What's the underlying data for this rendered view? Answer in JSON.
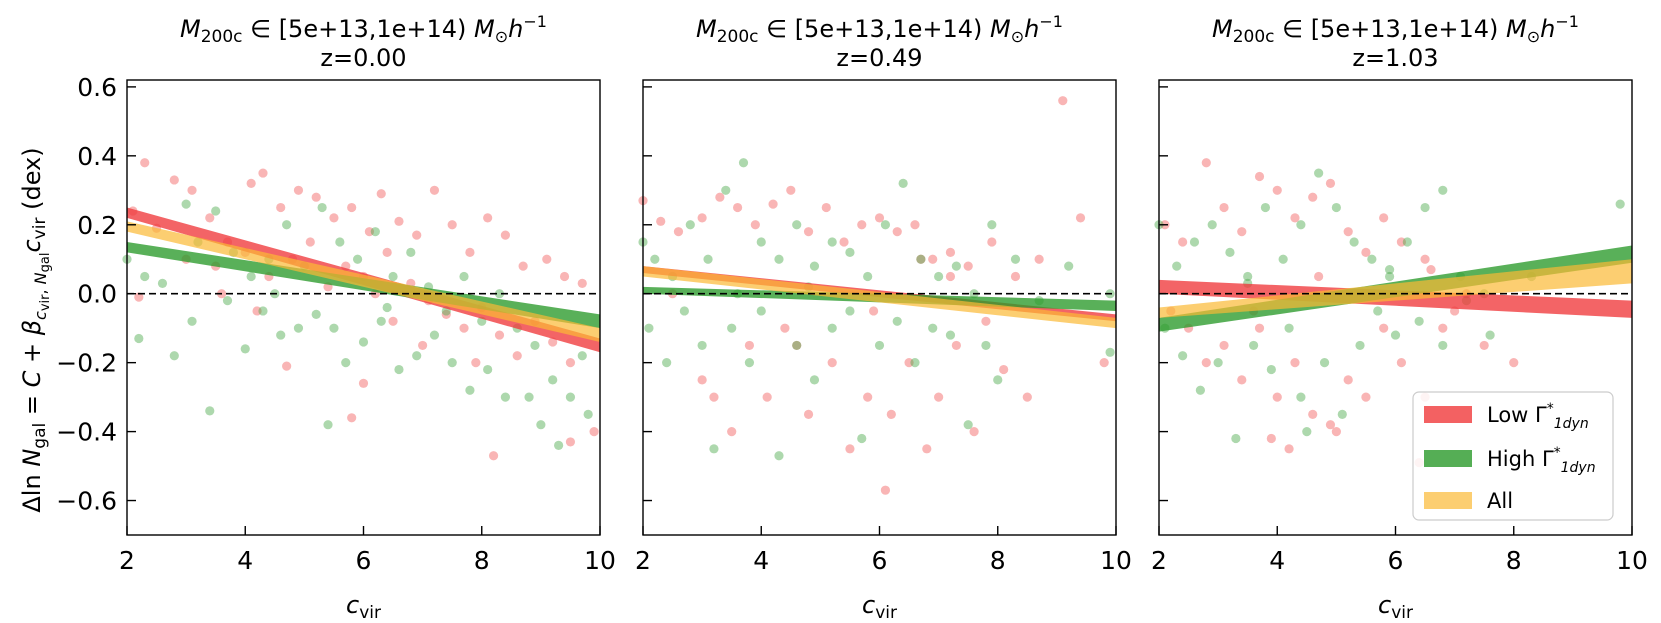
{
  "colors": {
    "low": "#f0393b",
    "high": "#2a9a2a",
    "all": "#fbb934",
    "low_point": "#f25a5c",
    "high_point": "#4aa84a",
    "axis": "#000000"
  },
  "shared": {
    "x_ticks": [
      2,
      4,
      6,
      8,
      10
    ],
    "y_ticks": [
      -0.6,
      -0.4,
      -0.2,
      0.0,
      0.2,
      0.4,
      0.6
    ],
    "y_tick_labels": [
      "−0.6",
      "−0.4",
      "−0.2",
      "0.0",
      "0.2",
      "0.4",
      "0.6"
    ]
  },
  "chart_data": [
    {
      "type": "scatter",
      "title_line1": "M200c ∈ [5e+13,1e+14) M⊙h⁻¹",
      "title_line2": "z=0.00",
      "xlabel": "c_vir",
      "ylabel": "Δln N_gal = C + β c_vir, N_gal c_vir (dex)",
      "xlim": [
        2,
        10
      ],
      "ylim": [
        -0.7,
        0.62
      ],
      "bands": [
        {
          "name": "Low Γ*1dyn",
          "color": "low",
          "at_x2": [
            0.22,
            0.25
          ],
          "at_x10": [
            -0.17,
            -0.13
          ]
        },
        {
          "name": "High Γ*1dyn",
          "color": "high",
          "at_x2": [
            0.12,
            0.15
          ],
          "at_x10": [
            -0.1,
            -0.06
          ]
        },
        {
          "name": "All",
          "color": "all",
          "at_x2": [
            0.18,
            0.21
          ],
          "at_x10": [
            -0.14,
            -0.1
          ]
        }
      ],
      "points_low": [
        [
          2.3,
          0.38
        ],
        [
          2.8,
          0.33
        ],
        [
          3.1,
          0.3
        ],
        [
          2.1,
          0.24
        ],
        [
          2.5,
          0.19
        ],
        [
          3.4,
          0.22
        ],
        [
          3.7,
          0.15
        ],
        [
          4.1,
          0.32
        ],
        [
          4.3,
          0.35
        ],
        [
          4.6,
          0.25
        ],
        [
          4.9,
          0.3
        ],
        [
          5.2,
          0.28
        ],
        [
          5.5,
          0.22
        ],
        [
          5.8,
          0.25
        ],
        [
          6.1,
          0.18
        ],
        [
          6.3,
          0.29
        ],
        [
          6.6,
          0.21
        ],
        [
          6.9,
          0.17
        ],
        [
          7.2,
          0.3
        ],
        [
          7.5,
          0.2
        ],
        [
          7.8,
          0.12
        ],
        [
          8.1,
          0.22
        ],
        [
          8.4,
          0.17
        ],
        [
          8.7,
          0.08
        ],
        [
          9.1,
          0.1
        ],
        [
          9.4,
          0.05
        ],
        [
          9.7,
          0.03
        ],
        [
          2.2,
          -0.01
        ],
        [
          3.0,
          0.1
        ],
        [
          3.5,
          0.08
        ],
        [
          4.0,
          0.12
        ],
        [
          4.4,
          0.05
        ],
        [
          4.8,
          0.1
        ],
        [
          5.1,
          0.15
        ],
        [
          5.4,
          0.02
        ],
        [
          5.7,
          0.08
        ],
        [
          6.0,
          0.05
        ],
        [
          6.4,
          0.12
        ],
        [
          6.8,
          0.03
        ],
        [
          7.1,
          -0.02
        ],
        [
          7.4,
          -0.06
        ],
        [
          7.7,
          -0.1
        ],
        [
          8.0,
          -0.04
        ],
        [
          8.3,
          -0.12
        ],
        [
          8.6,
          -0.18
        ],
        [
          8.9,
          -0.08
        ],
        [
          9.2,
          -0.14
        ],
        [
          9.5,
          -0.2
        ],
        [
          9.9,
          -0.4
        ],
        [
          9.5,
          -0.43
        ],
        [
          8.2,
          -0.47
        ],
        [
          5.8,
          -0.36
        ],
        [
          6.0,
          -0.26
        ],
        [
          4.7,
          -0.21
        ],
        [
          6.5,
          -0.08
        ],
        [
          7.0,
          -0.15
        ],
        [
          7.9,
          -0.2
        ],
        [
          4.2,
          -0.05
        ],
        [
          3.6,
          0.0
        ],
        [
          6.2,
          0.0
        ]
      ],
      "points_high": [
        [
          2.0,
          0.1
        ],
        [
          2.3,
          0.05
        ],
        [
          2.6,
          0.03
        ],
        [
          3.0,
          0.26
        ],
        [
          3.2,
          0.15
        ],
        [
          3.5,
          0.24
        ],
        [
          3.8,
          0.12
        ],
        [
          4.1,
          0.05
        ],
        [
          4.4,
          0.1
        ],
        [
          4.7,
          0.2
        ],
        [
          5.0,
          0.08
        ],
        [
          5.3,
          0.25
        ],
        [
          5.6,
          0.15
        ],
        [
          5.9,
          0.1
        ],
        [
          6.2,
          0.18
        ],
        [
          6.5,
          0.05
        ],
        [
          6.8,
          0.12
        ],
        [
          7.1,
          0.02
        ],
        [
          7.4,
          -0.05
        ],
        [
          7.7,
          0.05
        ],
        [
          8.0,
          -0.08
        ],
        [
          8.3,
          0.0
        ],
        [
          8.6,
          -0.1
        ],
        [
          8.9,
          -0.15
        ],
        [
          9.2,
          -0.25
        ],
        [
          9.5,
          -0.3
        ],
        [
          9.8,
          -0.35
        ],
        [
          2.2,
          -0.13
        ],
        [
          2.8,
          -0.18
        ],
        [
          3.1,
          -0.08
        ],
        [
          3.4,
          -0.34
        ],
        [
          3.7,
          -0.02
        ],
        [
          4.0,
          -0.16
        ],
        [
          4.3,
          -0.05
        ],
        [
          4.6,
          -0.12
        ],
        [
          4.9,
          -0.1
        ],
        [
          5.2,
          -0.06
        ],
        [
          5.4,
          -0.38
        ],
        [
          5.7,
          -0.2
        ],
        [
          6.0,
          -0.14
        ],
        [
          6.3,
          -0.08
        ],
        [
          6.6,
          -0.22
        ],
        [
          6.9,
          -0.18
        ],
        [
          7.2,
          -0.12
        ],
        [
          7.5,
          -0.2
        ],
        [
          7.8,
          -0.28
        ],
        [
          8.1,
          -0.22
        ],
        [
          8.4,
          -0.3
        ],
        [
          8.8,
          -0.3
        ],
        [
          9.0,
          -0.38
        ],
        [
          9.3,
          -0.44
        ],
        [
          9.7,
          -0.18
        ],
        [
          5.5,
          -0.1
        ],
        [
          6.4,
          -0.04
        ],
        [
          4.5,
          0.0
        ]
      ]
    },
    {
      "type": "scatter",
      "title_line1": "M200c ∈ [5e+13,1e+14) M⊙h⁻¹",
      "title_line2": "z=0.49",
      "xlabel": "c_vir",
      "xlim": [
        2,
        10
      ],
      "ylim": [
        -0.7,
        0.62
      ],
      "bands": [
        {
          "name": "Low Γ*1dyn",
          "color": "low",
          "at_x2": [
            0.06,
            0.08
          ],
          "at_x10": [
            -0.08,
            -0.06
          ]
        },
        {
          "name": "High Γ*1dyn",
          "color": "high",
          "at_x2": [
            0.0,
            0.02
          ],
          "at_x10": [
            -0.05,
            -0.02
          ]
        },
        {
          "name": "All",
          "color": "all",
          "at_x2": [
            0.05,
            0.08
          ],
          "at_x10": [
            -0.1,
            -0.07
          ]
        }
      ],
      "points_low": [
        [
          2.0,
          0.27
        ],
        [
          2.3,
          0.21
        ],
        [
          2.6,
          0.18
        ],
        [
          3.0,
          0.22
        ],
        [
          3.3,
          0.28
        ],
        [
          3.6,
          0.25
        ],
        [
          3.9,
          0.2
        ],
        [
          4.2,
          0.26
        ],
        [
          4.5,
          0.3
        ],
        [
          4.8,
          0.18
        ],
        [
          5.1,
          0.25
        ],
        [
          5.4,
          0.15
        ],
        [
          5.7,
          0.2
        ],
        [
          6.0,
          0.22
        ],
        [
          6.3,
          0.18
        ],
        [
          6.6,
          0.2
        ],
        [
          6.9,
          0.1
        ],
        [
          7.2,
          0.12
        ],
        [
          7.5,
          0.08
        ],
        [
          7.9,
          0.15
        ],
        [
          8.3,
          0.05
        ],
        [
          8.7,
          0.1
        ],
        [
          9.1,
          0.56
        ],
        [
          9.4,
          0.22
        ],
        [
          9.8,
          -0.2
        ],
        [
          2.5,
          0.0
        ],
        [
          3.0,
          -0.25
        ],
        [
          3.2,
          -0.3
        ],
        [
          3.5,
          -0.4
        ],
        [
          3.8,
          -0.15
        ],
        [
          4.1,
          -0.3
        ],
        [
          4.4,
          -0.1
        ],
        [
          4.8,
          -0.35
        ],
        [
          5.2,
          -0.2
        ],
        [
          5.5,
          -0.45
        ],
        [
          5.8,
          -0.3
        ],
        [
          6.2,
          -0.35
        ],
        [
          6.5,
          -0.2
        ],
        [
          6.8,
          -0.45
        ],
        [
          7.0,
          -0.3
        ],
        [
          7.3,
          -0.15
        ],
        [
          7.6,
          -0.4
        ],
        [
          7.8,
          -0.08
        ],
        [
          8.1,
          -0.22
        ],
        [
          8.5,
          -0.3
        ],
        [
          6.1,
          -0.57
        ],
        [
          4.6,
          -0.15
        ],
        [
          5.9,
          -0.05
        ],
        [
          7.2,
          0.05
        ],
        [
          6.7,
          0.1
        ]
      ],
      "points_high": [
        [
          2.0,
          0.15
        ],
        [
          2.2,
          0.1
        ],
        [
          2.5,
          0.05
        ],
        [
          2.8,
          0.2
        ],
        [
          3.1,
          0.1
        ],
        [
          3.4,
          0.3
        ],
        [
          3.7,
          0.38
        ],
        [
          4.0,
          0.15
        ],
        [
          4.3,
          0.1
        ],
        [
          4.6,
          0.2
        ],
        [
          4.9,
          0.08
        ],
        [
          5.2,
          0.15
        ],
        [
          5.5,
          0.12
        ],
        [
          5.8,
          0.05
        ],
        [
          6.1,
          0.2
        ],
        [
          6.4,
          0.32
        ],
        [
          6.7,
          0.1
        ],
        [
          7.0,
          0.05
        ],
        [
          7.3,
          0.08
        ],
        [
          7.6,
          0.0
        ],
        [
          7.9,
          0.2
        ],
        [
          8.3,
          0.1
        ],
        [
          8.7,
          -0.02
        ],
        [
          9.2,
          0.08
        ],
        [
          9.9,
          0.0
        ],
        [
          2.1,
          -0.1
        ],
        [
          2.4,
          -0.2
        ],
        [
          2.7,
          -0.05
        ],
        [
          3.0,
          -0.15
        ],
        [
          3.2,
          -0.45
        ],
        [
          3.5,
          -0.1
        ],
        [
          3.8,
          -0.2
        ],
        [
          4.0,
          -0.05
        ],
        [
          4.3,
          -0.47
        ],
        [
          4.6,
          -0.15
        ],
        [
          4.9,
          -0.25
        ],
        [
          5.2,
          -0.1
        ],
        [
          5.5,
          -0.05
        ],
        [
          5.7,
          -0.42
        ],
        [
          6.0,
          -0.15
        ],
        [
          6.3,
          -0.08
        ],
        [
          6.6,
          -0.2
        ],
        [
          6.9,
          -0.1
        ],
        [
          7.2,
          -0.12
        ],
        [
          7.5,
          -0.38
        ],
        [
          7.8,
          -0.15
        ],
        [
          3.6,
          0.0
        ],
        [
          4.8,
          0.02
        ],
        [
          9.9,
          -0.17
        ],
        [
          8.0,
          -0.25
        ]
      ]
    },
    {
      "type": "scatter",
      "title_line1": "M200c ∈ [5e+13,1e+14) M⊙h⁻¹",
      "title_line2": "z=1.03",
      "xlabel": "c_vir",
      "xlim": [
        2,
        10
      ],
      "ylim": [
        -0.7,
        0.62
      ],
      "bands": [
        {
          "name": "Low Γ*1dyn",
          "color": "low",
          "at_x2": [
            0.0,
            0.04
          ],
          "at_x10": [
            -0.07,
            -0.02
          ]
        },
        {
          "name": "High Γ*1dyn",
          "color": "high",
          "at_x2": [
            -0.11,
            -0.07
          ],
          "at_x10": [
            0.09,
            0.14
          ]
        },
        {
          "name": "All",
          "color": "all",
          "at_x2": [
            -0.07,
            -0.04
          ],
          "at_x10": [
            0.03,
            0.1
          ]
        }
      ],
      "points_low": [
        [
          2.1,
          0.2
        ],
        [
          2.4,
          0.15
        ],
        [
          2.8,
          0.38
        ],
        [
          3.1,
          0.25
        ],
        [
          3.4,
          0.18
        ],
        [
          3.7,
          0.34
        ],
        [
          4.0,
          0.3
        ],
        [
          4.3,
          0.22
        ],
        [
          4.6,
          0.28
        ],
        [
          4.9,
          0.32
        ],
        [
          5.2,
          0.18
        ],
        [
          5.5,
          0.12
        ],
        [
          5.8,
          0.22
        ],
        [
          6.1,
          0.15
        ],
        [
          6.5,
          0.1
        ],
        [
          2.2,
          -0.05
        ],
        [
          2.5,
          -0.1
        ],
        [
          2.8,
          -0.2
        ],
        [
          3.1,
          -0.15
        ],
        [
          3.4,
          -0.25
        ],
        [
          3.7,
          -0.1
        ],
        [
          4.0,
          -0.3
        ],
        [
          4.3,
          -0.2
        ],
        [
          4.6,
          -0.35
        ],
        [
          4.9,
          -0.38
        ],
        [
          5.2,
          -0.25
        ],
        [
          5.5,
          -0.3
        ],
        [
          5.8,
          -0.1
        ],
        [
          6.1,
          -0.2
        ],
        [
          6.5,
          -0.3
        ],
        [
          7.0,
          -0.05
        ],
        [
          7.5,
          -0.15
        ],
        [
          8.0,
          -0.2
        ],
        [
          3.9,
          -0.42
        ],
        [
          4.2,
          -0.45
        ],
        [
          5.0,
          -0.4
        ],
        [
          3.6,
          -0.05
        ],
        [
          4.7,
          0.05
        ],
        [
          6.4,
          -0.49
        ],
        [
          6.6,
          0.07
        ],
        [
          7.2,
          0.0
        ],
        [
          6.8,
          -0.1
        ]
      ],
      "points_high": [
        [
          2.0,
          0.2
        ],
        [
          2.3,
          0.08
        ],
        [
          2.6,
          0.15
        ],
        [
          2.9,
          0.2
        ],
        [
          3.2,
          0.12
        ],
        [
          3.5,
          0.05
        ],
        [
          3.8,
          0.25
        ],
        [
          4.1,
          0.1
        ],
        [
          4.4,
          0.2
        ],
        [
          4.7,
          0.35
        ],
        [
          5.0,
          0.25
        ],
        [
          5.3,
          0.15
        ],
        [
          5.6,
          0.1
        ],
        [
          5.9,
          0.05
        ],
        [
          6.2,
          0.15
        ],
        [
          6.5,
          0.25
        ],
        [
          6.8,
          0.3
        ],
        [
          7.1,
          0.05
        ],
        [
          7.5,
          0.0
        ],
        [
          9.8,
          0.26
        ],
        [
          2.1,
          -0.1
        ],
        [
          2.4,
          -0.18
        ],
        [
          2.7,
          -0.28
        ],
        [
          3.0,
          -0.2
        ],
        [
          3.3,
          -0.42
        ],
        [
          3.6,
          -0.15
        ],
        [
          3.9,
          -0.22
        ],
        [
          4.2,
          -0.1
        ],
        [
          4.5,
          -0.4
        ],
        [
          4.8,
          -0.2
        ],
        [
          5.1,
          -0.35
        ],
        [
          5.4,
          -0.15
        ],
        [
          5.7,
          -0.05
        ],
        [
          6.0,
          -0.12
        ],
        [
          6.4,
          -0.08
        ],
        [
          6.8,
          -0.15
        ],
        [
          7.2,
          -0.02
        ],
        [
          7.6,
          -0.12
        ],
        [
          3.5,
          0.03
        ],
        [
          4.4,
          -0.3
        ],
        [
          5.9,
          0.07
        ],
        [
          8.3,
          0.05
        ]
      ]
    }
  ],
  "legend": {
    "items": [
      {
        "label": "Low Γ*1dyn",
        "color": "low"
      },
      {
        "label": "High Γ*1dyn",
        "color": "high"
      },
      {
        "label": "All",
        "color": "all"
      }
    ]
  }
}
